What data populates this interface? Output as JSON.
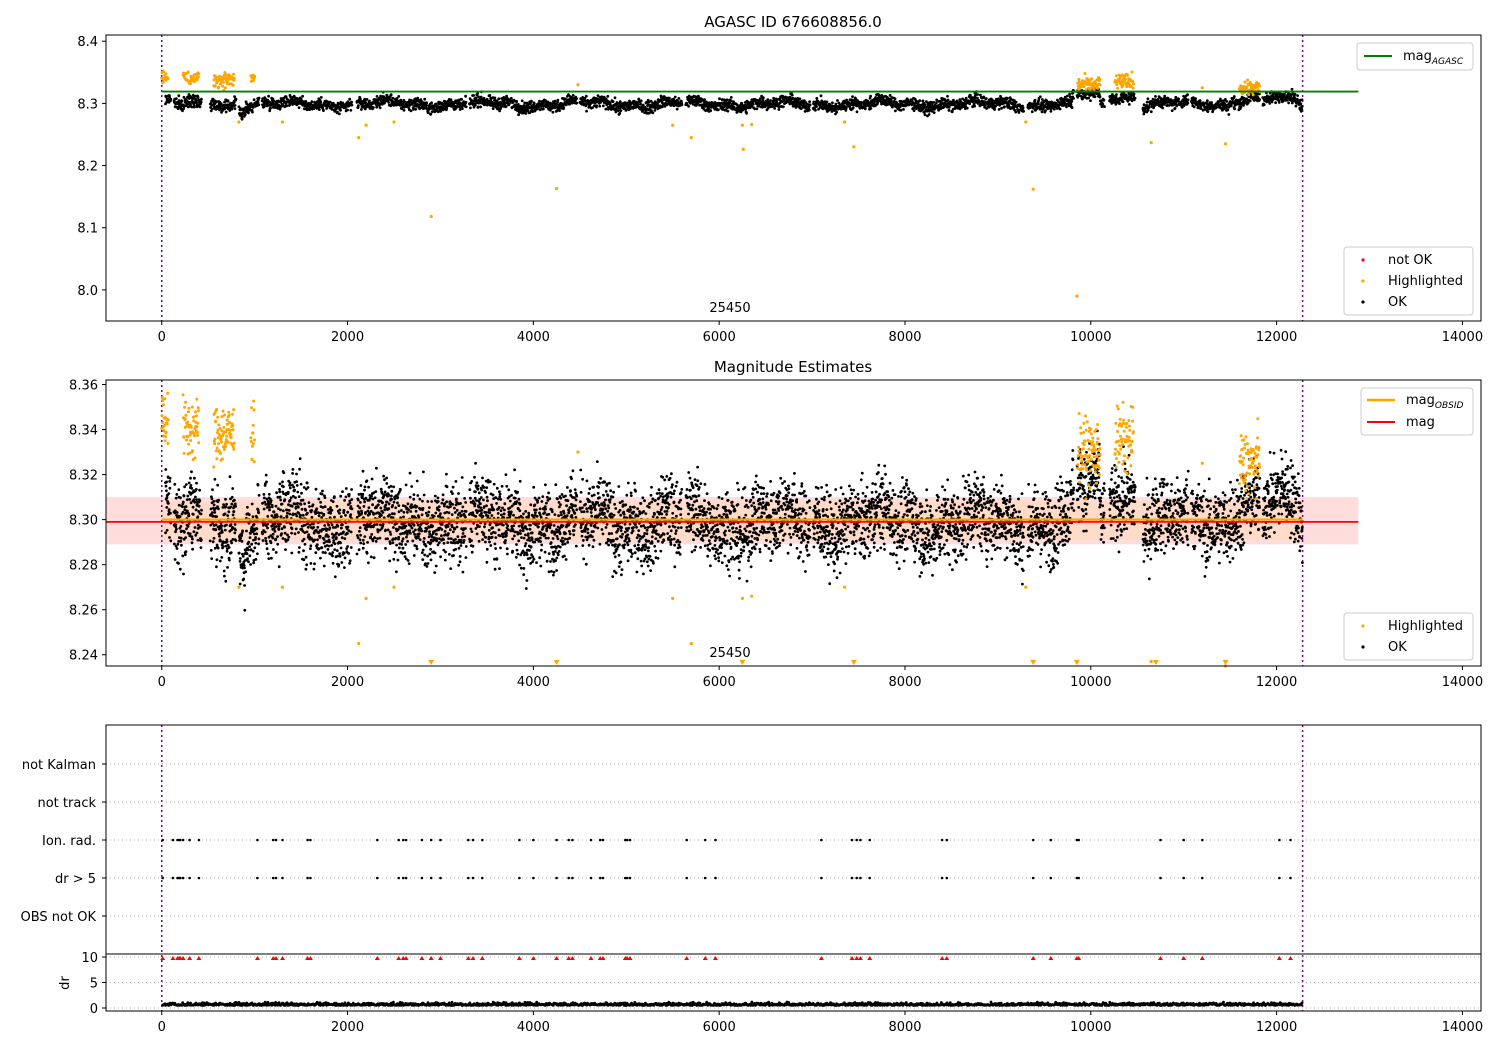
{
  "chart_data": [
    {
      "type": "scatter",
      "title": "AGASC ID 676608856.0",
      "xlim": [
        -600,
        14200
      ],
      "ylim": [
        7.95,
        8.41
      ],
      "xticks": [
        0,
        2000,
        4000,
        6000,
        8000,
        10000,
        12000,
        14000
      ],
      "yticks": [
        8.0,
        8.1,
        8.2,
        8.3,
        8.4
      ],
      "xtick_labels": [
        "0",
        "2000",
        "4000",
        "6000",
        "8000",
        "10000",
        "12000",
        "14000"
      ],
      "ytick_labels": [
        "8.0",
        "8.1",
        "8.2",
        "8.3",
        "8.4"
      ],
      "obsid_lines": [
        0,
        12280
      ],
      "obsid_label": {
        "text": "25450",
        "x": 6000
      },
      "mag_agasc": 8.319,
      "mag_agasc_range": [
        0,
        12880
      ],
      "legend_upper": {
        "position": "upper-right",
        "entries": [
          "mag_AGASC"
        ]
      },
      "legend_lower": {
        "position": "lower-right",
        "entries": [
          "not OK",
          "Highlighted",
          "OK"
        ]
      },
      "highlight_segments": [
        [
          0,
          70,
          8.345
        ],
        [
          230,
          400,
          8.34
        ],
        [
          560,
          780,
          8.338
        ],
        [
          960,
          1000,
          8.34
        ],
        [
          9860,
          10100,
          8.33
        ],
        [
          10260,
          10460,
          8.335
        ],
        [
          11600,
          11820,
          8.325
        ]
      ],
      "highlight_points": [
        [
          830,
          8.27
        ],
        [
          1300,
          8.27
        ],
        [
          2120,
          8.245
        ],
        [
          2200,
          8.265
        ],
        [
          2500,
          8.27
        ],
        [
          2900,
          8.118
        ],
        [
          4250,
          8.163
        ],
        [
          4480,
          8.33
        ],
        [
          5500,
          8.265
        ],
        [
          5700,
          8.245
        ],
        [
          6250,
          8.265
        ],
        [
          6260,
          8.226
        ],
        [
          6350,
          8.266
        ],
        [
          7350,
          8.27
        ],
        [
          7450,
          8.23
        ],
        [
          9300,
          8.27
        ],
        [
          9380,
          8.162
        ],
        [
          9850,
          7.99
        ],
        [
          10650,
          8.237
        ],
        [
          11450,
          8.235
        ],
        [
          11200,
          8.325
        ],
        [
          11700,
          8.33
        ]
      ],
      "ok_mean": 8.3,
      "ok_spread": 0.008,
      "series": [
        {
          "name": "not OK",
          "color": "#ff0000"
        },
        {
          "name": "Highlighted",
          "color": "#ffa500"
        },
        {
          "name": "OK",
          "color": "#000000"
        }
      ]
    },
    {
      "type": "scatter",
      "title": "Magnitude Estimates",
      "xlim": [
        -600,
        14200
      ],
      "ylim": [
        8.235,
        8.362
      ],
      "xticks": [
        0,
        2000,
        4000,
        6000,
        8000,
        10000,
        12000,
        14000
      ],
      "yticks": [
        8.24,
        8.26,
        8.28,
        8.3,
        8.32,
        8.34,
        8.36
      ],
      "xtick_labels": [
        "0",
        "2000",
        "4000",
        "6000",
        "8000",
        "10000",
        "12000",
        "14000"
      ],
      "ytick_labels": [
        "8.24",
        "8.26",
        "8.28",
        "8.30",
        "8.32",
        "8.34",
        "8.36"
      ],
      "obsid_lines": [
        0,
        12280
      ],
      "obsid_label": {
        "text": "25450",
        "x": 6000
      },
      "mag_obsid": 8.3,
      "mag": 8.299,
      "mag_band": [
        8.289,
        8.31
      ],
      "mag_range": [
        -600,
        12880
      ],
      "legend_upper": {
        "position": "upper-right",
        "entries": [
          "mag_OBSID",
          "mag"
        ]
      },
      "legend_lower": {
        "position": "lower-right",
        "entries": [
          "Highlighted",
          "OK"
        ]
      },
      "clipped_low_markers": [
        2900,
        4250,
        6250,
        7450,
        9380,
        9850,
        10700,
        11450
      ],
      "series": [
        {
          "name": "Highlighted",
          "color": "#ffa500"
        },
        {
          "name": "OK",
          "color": "#000000"
        }
      ]
    },
    {
      "type": "scatter",
      "title": "",
      "xlim": [
        -600,
        14200
      ],
      "flag_rows": [
        "not Kalman",
        "not track",
        "Ion. rad.",
        "dr > 5",
        "OBS not OK"
      ],
      "flag_times": [
        10,
        120,
        170,
        190,
        200,
        230,
        300,
        400,
        1030,
        1200,
        1230,
        1300,
        1570,
        1600,
        2320,
        2550,
        2600,
        2630,
        2800,
        2900,
        3000,
        3300,
        3350,
        3450,
        3850,
        4000,
        4250,
        4380,
        4420,
        4620,
        4720,
        4750,
        4990,
        5010,
        5040,
        5650,
        5850,
        5960,
        7100,
        7430,
        7480,
        7520,
        7620,
        8400,
        8450,
        9380,
        9570,
        9850,
        9870,
        10750,
        11000,
        11200,
        12030,
        12150
      ],
      "dr_ylim": [
        0,
        10
      ],
      "dr_yticks": [
        0,
        5,
        10
      ],
      "dr_ytick_labels": [
        "0",
        "5",
        "10"
      ],
      "dr_ylabel": "dr",
      "dr_mean": 0.5,
      "xticks": [
        0,
        2000,
        4000,
        6000,
        8000,
        10000,
        12000,
        14000
      ],
      "xtick_labels": [
        "0",
        "2000",
        "4000",
        "6000",
        "8000",
        "10000",
        "12000",
        "14000"
      ],
      "obsid_lines": [
        0,
        12280
      ]
    }
  ],
  "legend_labels": {
    "mag_agasc": {
      "main": "mag",
      "sub": "AGASC"
    },
    "mag_obsid": {
      "main": "mag",
      "sub": "OBSID"
    },
    "mag": "mag",
    "not_ok": "not OK",
    "highlighted": "Highlighted",
    "ok": "OK"
  },
  "colors": {
    "ok": "#000000",
    "highlighted": "#ffa500",
    "not_ok": "#ff0000",
    "agasc_line": "#008000",
    "mag_line": "#ff0000",
    "obsid_line": "#ffa500",
    "obsid_vline": "#800080",
    "band_red": "#ffb3b3",
    "band_orange": "#ffd9b3",
    "grid": "#b0b0b0"
  }
}
